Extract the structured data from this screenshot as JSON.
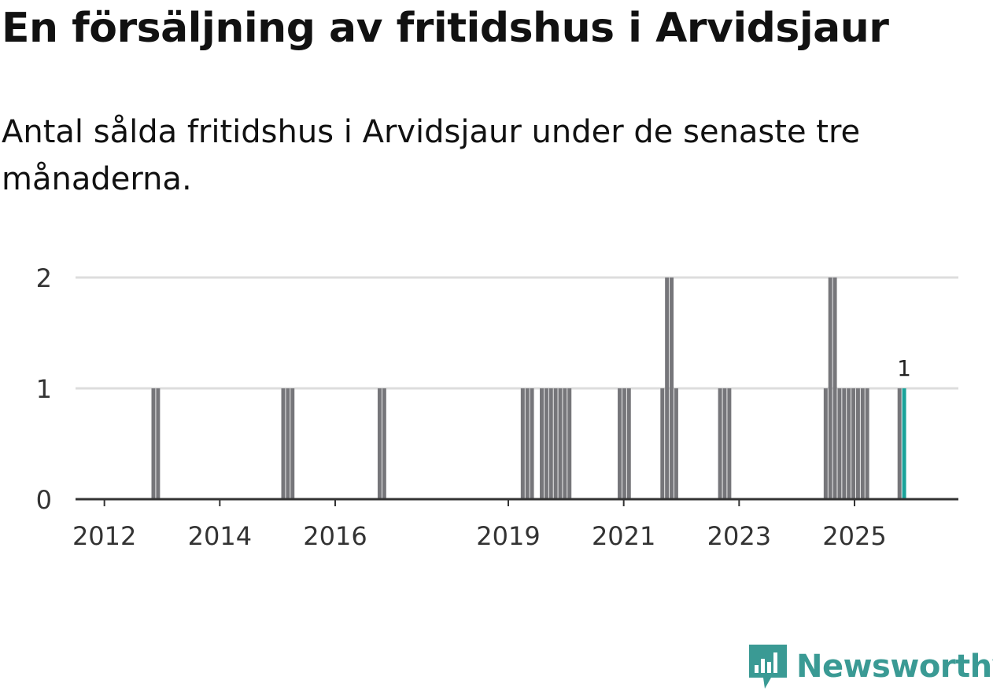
{
  "title": "En försäljning av fritidshus i Arvidsjaur",
  "subtitle": "Antal sålda fritidshus i Arvidsjaur under de senaste tre månaderna.",
  "brand": {
    "name": "Newsworthy",
    "color": "#3a9a94",
    "icon": "newsworthy-logo-icon"
  },
  "colors": {
    "bar": "#76767a",
    "highlight": "#1aa39a",
    "grid": "#dddddd",
    "axis": "#333333"
  },
  "chart_data": {
    "type": "bar",
    "title": "En försäljning av fritidshus i Arvidsjaur",
    "subtitle": "Antal sålda fritidshus i Arvidsjaur under de senaste tre månaderna.",
    "xlabel": "",
    "ylabel": "",
    "ylim": [
      0,
      2
    ],
    "yticks": [
      0,
      1,
      2
    ],
    "xlim": [
      2011.5,
      2026.8
    ],
    "xticks": [
      2012,
      2014,
      2016,
      2019,
      2021,
      2023,
      2025
    ],
    "grid": true,
    "x": [
      2012.85,
      2012.93,
      2015.1,
      2015.18,
      2015.26,
      2016.77,
      2016.85,
      2019.25,
      2019.33,
      2019.41,
      2019.58,
      2019.66,
      2019.74,
      2019.82,
      2019.9,
      2019.98,
      2020.06,
      2020.93,
      2021.01,
      2021.09,
      2021.67,
      2021.75,
      2021.83,
      2021.91,
      2022.67,
      2022.75,
      2022.83,
      2024.5,
      2024.58,
      2024.66,
      2024.74,
      2024.82,
      2024.9,
      2024.98,
      2025.06,
      2025.14,
      2025.22,
      2025.78,
      2025.86
    ],
    "values": [
      1,
      1,
      1,
      1,
      1,
      1,
      1,
      1,
      1,
      1,
      1,
      1,
      1,
      1,
      1,
      1,
      1,
      1,
      1,
      1,
      1,
      2,
      2,
      1,
      1,
      1,
      1,
      1,
      2,
      2,
      1,
      1,
      1,
      1,
      1,
      1,
      1,
      1,
      1
    ],
    "highlight_index": 38,
    "annotation": {
      "text": "1",
      "target": "last-bar"
    }
  }
}
